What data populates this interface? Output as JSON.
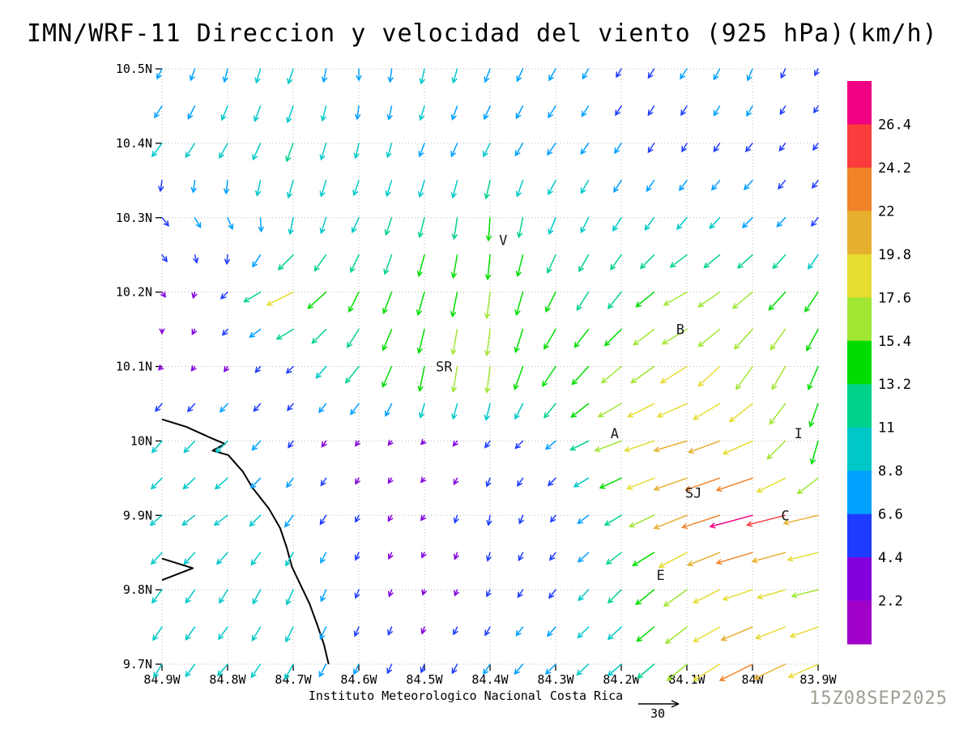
{
  "title": "IMN/WRF-11 Direccion y velocidad del viento (925 hPa)(km/h)",
  "footer": {
    "institute": "Instituto Meteorologico Nacional Costa Rica",
    "ref_label": "30",
    "timestamp": "15Z08SEP2025"
  },
  "colorbar": {
    "labels": [
      "26.4",
      "24.2",
      "22",
      "19.8",
      "17.6",
      "15.4",
      "13.2",
      "11",
      "8.8",
      "6.6",
      "4.4",
      "2.2"
    ]
  },
  "stations": [
    {
      "label": "V",
      "lon": -84.38,
      "lat": 10.27
    },
    {
      "label": "B",
      "lon": -84.11,
      "lat": 10.15
    },
    {
      "label": "SR",
      "lon": -84.47,
      "lat": 10.1
    },
    {
      "label": "A",
      "lon": -84.21,
      "lat": 10.01
    },
    {
      "label": "SJ",
      "lon": -84.09,
      "lat": 9.93
    },
    {
      "label": "C",
      "lon": -83.95,
      "lat": 9.9
    },
    {
      "label": "E",
      "lon": -84.14,
      "lat": 9.82
    },
    {
      "label": "I",
      "lon": -83.93,
      "lat": 10.01
    }
  ],
  "coastline": {
    "main": [
      [
        -84.9,
        10.029
      ],
      [
        -84.863,
        10.019
      ],
      [
        -84.828,
        10.005
      ],
      [
        -84.804,
        9.996
      ],
      [
        -84.823,
        9.987
      ],
      [
        -84.799,
        9.981
      ],
      [
        -84.777,
        9.959
      ],
      [
        -84.762,
        9.937
      ],
      [
        -84.737,
        9.909
      ],
      [
        -84.72,
        9.883
      ],
      [
        -84.71,
        9.857
      ],
      [
        -84.702,
        9.831
      ],
      [
        -84.688,
        9.805
      ],
      [
        -84.675,
        9.781
      ],
      [
        -84.663,
        9.752
      ],
      [
        -84.653,
        9.726
      ],
      [
        -84.646,
        9.7
      ]
    ],
    "peninsula": [
      [
        -84.9,
        9.842
      ],
      [
        -84.853,
        9.829
      ],
      [
        -84.9,
        9.813
      ]
    ]
  },
  "chart_data": {
    "type": "quiver",
    "title": "IMN/WRF-11 Direccion y velocidad del viento (925 hPa)(km/h)",
    "level": "925 hPa",
    "speed_unit": "km/h",
    "reference_speed": 30,
    "x_range": [
      -84.9,
      -83.9
    ],
    "y_range": [
      9.7,
      10.5
    ],
    "axes": {
      "x_tick_labels": [
        "84.9W",
        "84.8W",
        "84.7W",
        "84.6W",
        "84.5W",
        "84.4W",
        "84.3W",
        "84.2W",
        "84.1W",
        "84W",
        "83.9W"
      ],
      "x_tick_values": [
        -84.9,
        -84.8,
        -84.7,
        -84.6,
        -84.5,
        -84.4,
        -84.3,
        -84.2,
        -84.1,
        -84.0,
        -83.9
      ],
      "y_tick_labels": [
        "10.5N",
        "10.4N",
        "10.3N",
        "10.2N",
        "10.1N",
        "10N",
        "9.9N",
        "9.8N",
        "9.7N"
      ],
      "y_tick_values": [
        10.5,
        10.4,
        10.3,
        10.2,
        10.1,
        10.0,
        9.9,
        9.8,
        9.7
      ],
      "grid": "dotted"
    },
    "speed_thresholds": [
      2.2,
      4.4,
      6.6,
      8.8,
      11,
      13.2,
      15.4,
      17.6,
      19.8,
      22,
      24.2,
      26.4
    ],
    "palette": [
      "#a000c8",
      "#8200dc",
      "#1e3cff",
      "#00a0ff",
      "#00c8c8",
      "#00d28c",
      "#00dc00",
      "#a0e632",
      "#e6dc32",
      "#e6af2d",
      "#f08228",
      "#fa3c3c",
      "#f00082"
    ],
    "lats": [
      10.5,
      10.4,
      10.3,
      10.2,
      10.1,
      10.0,
      9.9,
      9.8,
      9.7
    ],
    "lons": [
      -84.9,
      -84.8,
      -84.7,
      -84.6,
      -84.5,
      -84.4,
      -84.3,
      -84.2,
      -84.1,
      -84.0,
      -83.9
    ],
    "u": [
      [
        -3,
        -2,
        -3,
        0,
        -2,
        -3,
        -4,
        -3,
        -4,
        -3,
        -2
      ],
      [
        -6,
        -5,
        -4,
        -2,
        -3,
        -4,
        -5,
        -4,
        -3,
        -4,
        -3
      ],
      [
        4,
        3,
        -2,
        -4,
        -3,
        -1,
        -4,
        -5,
        -6,
        -6,
        -4
      ],
      [
        2,
        -4,
        -16,
        -6,
        -4,
        -2,
        -6,
        -8,
        -14,
        -12,
        -8
      ],
      [
        -2,
        -2,
        -4,
        -8,
        -3,
        -2,
        -8,
        -12,
        -16,
        -10,
        -6
      ],
      [
        -6,
        -7,
        -3,
        -2,
        -2,
        -3,
        -6,
        -16,
        -20,
        -18,
        -4
      ],
      [
        -7,
        -8,
        -5,
        -2,
        -2,
        -1,
        -3,
        -10,
        -20,
        -26,
        -21
      ],
      [
        -6,
        -5,
        -4,
        -2,
        -1,
        -2,
        -4,
        -8,
        -14,
        -18,
        -16
      ],
      [
        -5,
        -6,
        -5,
        -3,
        -2,
        -4,
        -6,
        -8,
        -12,
        -20,
        -18
      ]
    ],
    "v": [
      [
        -6,
        -8,
        -9,
        -7,
        -9,
        -8,
        -7,
        -5,
        -6,
        -7,
        -4
      ],
      [
        -8,
        -9,
        -11,
        -9,
        -8,
        -8,
        -7,
        -6,
        -5,
        -5,
        -4
      ],
      [
        -5,
        -7,
        -10,
        -9,
        -12,
        -14,
        -10,
        -8,
        -7,
        -6,
        -5
      ],
      [
        -3,
        -4,
        -8,
        -12,
        -14,
        -16,
        -12,
        -10,
        -8,
        -10,
        -12
      ],
      [
        -2,
        -3,
        -4,
        -10,
        -15,
        -16,
        -12,
        -10,
        -10,
        -14,
        -14
      ],
      [
        -7,
        -7,
        -4,
        -3,
        -2,
        -4,
        -5,
        -6,
        -6,
        -8,
        -14
      ],
      [
        -6,
        -6,
        -7,
        -4,
        -3,
        -6,
        -4,
        -6,
        -8,
        -7,
        -5
      ],
      [
        -8,
        -8,
        -9,
        -5,
        -3,
        -4,
        -5,
        -8,
        -10,
        -6,
        -4
      ],
      [
        -8,
        -7,
        -9,
        -6,
        -5,
        -6,
        -6,
        -7,
        -10,
        -10,
        -8
      ]
    ]
  }
}
